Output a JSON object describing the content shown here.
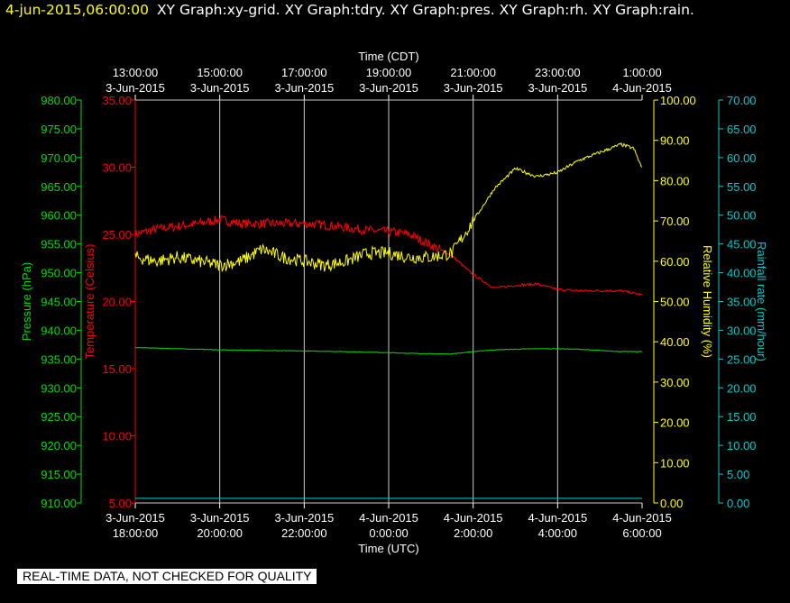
{
  "header": {
    "date_time": "4-jun-2015,06:00:00",
    "graphs": "XY Graph:xy-grid.  XY Graph:tdry.  XY Graph:pres.  XY Graph:rh.  XY Graph:rain."
  },
  "footer": {
    "notice": "REAL-TIME DATA, NOT CHECKED FOR QUALITY"
  },
  "colors": {
    "background": "#000000",
    "grid": "#c8c8c8",
    "temperature": "#ff0000",
    "pressure": "#00dd00",
    "humidity": "#ffff00",
    "rainfall": "#00cccc",
    "text": "#ffffff"
  },
  "chart_data": {
    "type": "line",
    "x_top": {
      "label": "Time (CDT)",
      "ticks": [
        [
          "13:00:00",
          "3-Jun-2015"
        ],
        [
          "15:00:00",
          "3-Jun-2015"
        ],
        [
          "17:00:00",
          "3-Jun-2015"
        ],
        [
          "19:00:00",
          "3-Jun-2015"
        ],
        [
          "21:00:00",
          "3-Jun-2015"
        ],
        [
          "23:00:00",
          "3-Jun-2015"
        ],
        [
          "1:00:00",
          "4-Jun-2015"
        ]
      ]
    },
    "x_bottom": {
      "label": "Time (UTC)",
      "range_hours": [
        0,
        12
      ],
      "ticks": [
        [
          "3-Jun-2015",
          "18:00:00"
        ],
        [
          "3-Jun-2015",
          "20:00:00"
        ],
        [
          "3-Jun-2015",
          "22:00:00"
        ],
        [
          "4-Jun-2015",
          "0:00:00"
        ],
        [
          "4-Jun-2015",
          "2:00:00"
        ],
        [
          "4-Jun-2015",
          "4:00:00"
        ],
        [
          "4-Jun-2015",
          "6:00:00"
        ]
      ]
    },
    "axes": {
      "pressure": {
        "label": "Pressure (hPa)",
        "ylim": [
          910,
          980
        ],
        "step": 5,
        "ticks": [
          "910.00",
          "915.00",
          "920.00",
          "925.00",
          "930.00",
          "935.00",
          "940.00",
          "945.00",
          "950.00",
          "955.00",
          "960.00",
          "965.00",
          "970.00",
          "975.00",
          "980.00"
        ]
      },
      "temperature": {
        "label": "Temperature (Celsius)",
        "ylim": [
          5,
          35
        ],
        "step": 5,
        "ticks": [
          "5.00",
          "10.00",
          "15.00",
          "20.00",
          "25.00",
          "30.00",
          "35.00"
        ]
      },
      "humidity": {
        "label": "Relative Humidity (%)",
        "ylim": [
          0,
          100
        ],
        "step": 10,
        "ticks": [
          "0.00",
          "10.00",
          "20.00",
          "30.00",
          "40.00",
          "50.00",
          "60.00",
          "70.00",
          "80.00",
          "90.00",
          "100.00"
        ]
      },
      "rainfall": {
        "label": "Rainfall rate (mm/hour)",
        "ylim": [
          0,
          70
        ],
        "step": 5,
        "ticks": [
          "0.00",
          "5.00",
          "10.00",
          "15.00",
          "20.00",
          "25.00",
          "30.00",
          "35.00",
          "40.00",
          "45.00",
          "50.00",
          "55.00",
          "60.00",
          "65.00",
          "70.00"
        ]
      }
    },
    "grid": true,
    "series": [
      {
        "name": "tdry",
        "axis": "temperature",
        "x": [
          0,
          0.5,
          1,
          1.5,
          2,
          2.5,
          3,
          3.5,
          4,
          4.5,
          5,
          5.5,
          6,
          6.5,
          7,
          7.5,
          8,
          8.5,
          9,
          9.5,
          10,
          10.5,
          11,
          11.5,
          12
        ],
        "y": [
          25.0,
          25.4,
          25.6,
          25.8,
          26.1,
          25.8,
          25.8,
          25.8,
          25.8,
          25.7,
          25.5,
          25.3,
          25.2,
          25.0,
          24.2,
          23.4,
          22.0,
          21.0,
          21.2,
          21.3,
          20.9,
          20.8,
          20.8,
          20.8,
          20.5
        ]
      },
      {
        "name": "pres",
        "axis": "pressure",
        "x": [
          0,
          1,
          2,
          3,
          4,
          5,
          6,
          7,
          7.5,
          8,
          8.5,
          9,
          9.5,
          10,
          10.5,
          11,
          11.5,
          12
        ],
        "y": [
          937.0,
          936.8,
          936.6,
          936.5,
          936.4,
          936.3,
          936.1,
          935.9,
          935.9,
          936.3,
          936.6,
          936.7,
          936.8,
          936.8,
          936.7,
          936.5,
          936.3,
          936.3
        ]
      },
      {
        "name": "rh",
        "axis": "humidity",
        "x": [
          0,
          0.5,
          1,
          1.5,
          2,
          2.5,
          3,
          3.5,
          4,
          4.5,
          5,
          5.5,
          6,
          6.5,
          7,
          7.5,
          8,
          8.5,
          9,
          9.5,
          10,
          10.5,
          11,
          11.5,
          11.8,
          12
        ],
        "y": [
          61,
          60,
          61,
          60,
          59,
          60,
          63,
          61,
          60,
          59,
          60,
          62,
          62,
          61,
          61,
          62,
          70,
          78,
          83,
          81,
          82,
          85,
          87,
          89,
          88,
          83
        ]
      },
      {
        "name": "rain",
        "axis": "rainfall",
        "x": [
          0,
          12
        ],
        "y": [
          0.8,
          0.8
        ]
      }
    ]
  }
}
